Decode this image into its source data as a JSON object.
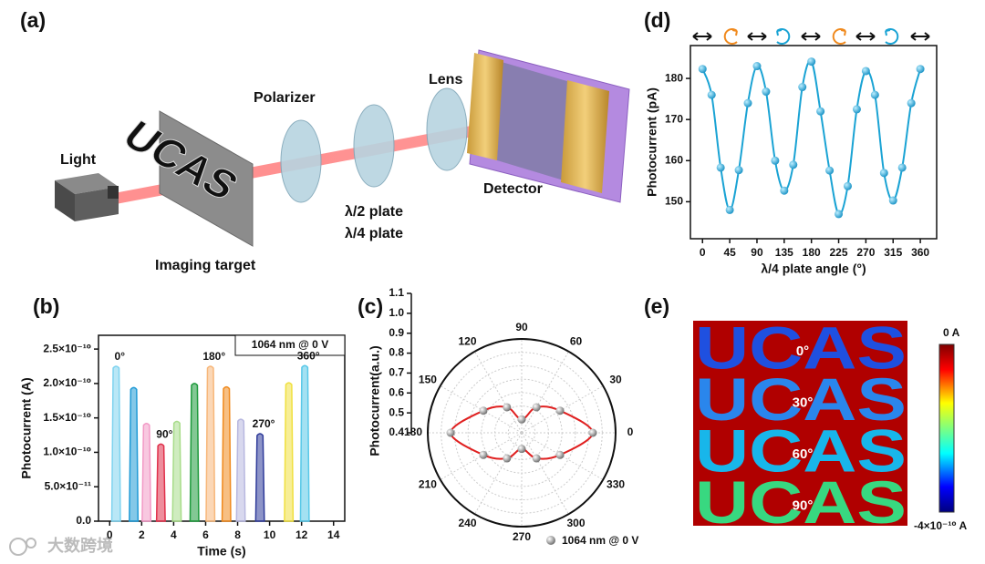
{
  "diagram": {
    "panel_label": "(a)",
    "labels": {
      "light": "Light",
      "polarizer": "Polarizer",
      "lens": "Lens",
      "detector": "Detector",
      "half_plate": "λ/2 plate",
      "quarter_plate": "λ/4 plate",
      "target": "Imaging target"
    },
    "target_text": "UCAS"
  },
  "chart_data": [
    {
      "type": "pulse",
      "panel_label": "(b)",
      "x_label": "Time (s)",
      "y_label": "Photocurrent (A)",
      "annotation": "1064 nm @ 0 V",
      "x": [
        0.4,
        1.5,
        2.3,
        3.2,
        4.2,
        5.3,
        6.3,
        7.3,
        8.2,
        9.4,
        11.2,
        12.2
      ],
      "values": [
        2.25e-10,
        1.94e-10,
        1.42e-10,
        1.12e-10,
        1.45e-10,
        2e-10,
        2.25e-10,
        1.95e-10,
        1.48e-10,
        1.27e-10,
        2.01e-10,
        2.26e-10
      ],
      "colors": [
        "#7fd3ef",
        "#1f9ad6",
        "#f29ac6",
        "#e0304a",
        "#a8dc8a",
        "#1e9a3c",
        "#f7b77a",
        "#f08a1e",
        "#b8b8e0",
        "#303c9a",
        "#f0e040",
        "#58c8e8"
      ],
      "angle_labels": [
        "0°",
        null,
        null,
        "90°",
        null,
        null,
        "180°",
        null,
        null,
        "270°",
        null,
        "360°"
      ],
      "xlim": [
        -0.7,
        14.7
      ],
      "xticks": [
        0,
        2,
        4,
        6,
        8,
        10,
        12,
        14
      ],
      "ylim": [
        0,
        2.7e-10
      ],
      "yticks": [
        {
          "value": 0,
          "label": "0.0"
        },
        {
          "value": 5e-11,
          "label": "5.0×10⁻¹¹"
        },
        {
          "value": 1e-10,
          "label": "1.0×10⁻¹⁰"
        },
        {
          "value": 1.5e-10,
          "label": "1.5×10⁻¹⁰"
        },
        {
          "value": 2e-10,
          "label": "2.0×10⁻¹⁰"
        },
        {
          "value": 2.5e-10,
          "label": "2.5×10⁻¹⁰"
        }
      ]
    },
    {
      "type": "polar",
      "panel_label": "(c)",
      "y_label": "Photocurrent(a.u.)",
      "legend": "1064 nm @ 0 V",
      "theta": [
        0,
        30,
        60,
        90,
        120,
        150,
        180,
        210,
        240,
        270,
        300,
        330
      ],
      "values": [
        0.93,
        0.73,
        0.62,
        0.5,
        0.62,
        0.73,
        0.93,
        0.73,
        0.62,
        0.52,
        0.62,
        0.73
      ],
      "color": "#e02020",
      "rlim": [
        0.4,
        1.1
      ],
      "rticks": [
        0.4,
        0.5,
        0.6,
        0.7,
        0.8,
        0.9,
        {
          "value": 1,
          "label": "1.0"
        },
        1.1
      ],
      "thetaticks": [
        0,
        30,
        60,
        90,
        120,
        150,
        180,
        210,
        240,
        270,
        300,
        330
      ]
    },
    {
      "type": "line",
      "panel_label": "(d)",
      "x_label": "λ/4 plate angle (°)",
      "y_label": "Photocurrent (pA)",
      "x": [
        0,
        15,
        30,
        45,
        60,
        75,
        90,
        105,
        120,
        135,
        150,
        165,
        180,
        195,
        210,
        225,
        240,
        255,
        270,
        285,
        300,
        315,
        330,
        345,
        360
      ],
      "values": [
        182.3,
        176,
        158.3,
        148,
        157.7,
        174,
        183,
        176.8,
        160,
        152.7,
        159,
        177.9,
        184.1,
        172,
        157.6,
        147,
        153.8,
        172.5,
        181.8,
        176,
        157,
        150.3,
        158.3,
        174,
        182.3
      ],
      "color": "#1aa3d4",
      "xlim": [
        -20,
        387
      ],
      "xticks": [
        0,
        45,
        90,
        135,
        180,
        225,
        270,
        315,
        360
      ],
      "ylim": [
        141,
        188
      ],
      "yticks": [
        150,
        160,
        170,
        180
      ]
    }
  ],
  "image_panel": {
    "panel_label": "(e)",
    "rows": [
      {
        "text": "UCAS",
        "label": "0°",
        "color": "#1f50e0"
      },
      {
        "text": "UCAS",
        "label": "30°",
        "color": "#2a86ec"
      },
      {
        "text": "UCAS",
        "label": "60°",
        "color": "#18b6ea"
      },
      {
        "text": "UCAS",
        "label": "90°",
        "color": "#38d880"
      }
    ],
    "colorbar": {
      "max_label": "0 A",
      "min_label": "-4×10⁻¹⁰ A"
    }
  },
  "watermark": "大数跨境"
}
